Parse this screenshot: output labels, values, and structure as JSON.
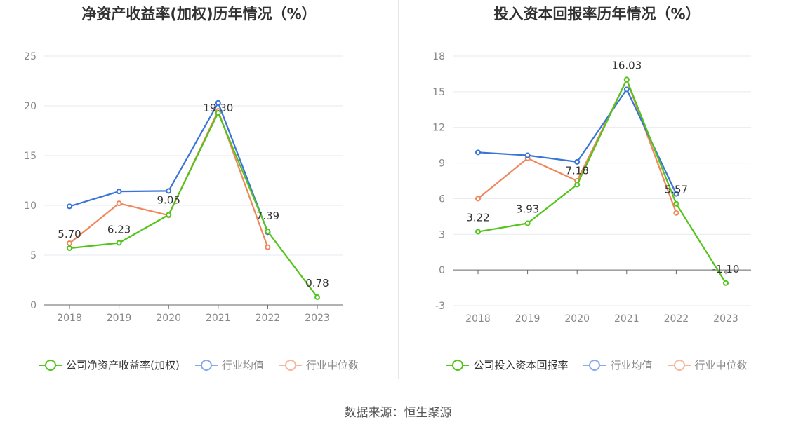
{
  "source": "数据来源：恒生聚源",
  "colors": {
    "company": "#52c41a",
    "avg": "#3a74d8",
    "median": "#f0875a",
    "grid": "#e6e9f0",
    "axis_text": "#888888",
    "label_text": "#333333"
  },
  "chart_data": [
    {
      "type": "line",
      "title": "净资产收益率(加权)历年情况（%）",
      "categories": [
        "2018",
        "2019",
        "2020",
        "2021",
        "2022",
        "2023"
      ],
      "yticks": [
        "0",
        "5",
        "10",
        "15",
        "20",
        "25"
      ],
      "ylim": [
        0,
        25
      ],
      "grid": true,
      "legend_position": "bottom",
      "series": [
        {
          "name": "公司净资产收益率(加权)",
          "color": "#52c41a",
          "values": [
            5.7,
            6.23,
            9.05,
            19.3,
            7.39,
            0.78
          ],
          "labels": [
            "5.70",
            "6.23",
            "9.05",
            "19.30",
            "7.39",
            "0.78"
          ]
        },
        {
          "name": "行业均值",
          "color": "#3a74d8",
          "values": [
            9.9,
            11.4,
            11.45,
            20.3,
            7.3,
            null
          ]
        },
        {
          "name": "行业中位数",
          "color": "#f0875a",
          "values": [
            6.2,
            10.2,
            9.0,
            19.5,
            5.8,
            null
          ]
        }
      ]
    },
    {
      "type": "line",
      "title": "投入资本回报率历年情况（%）",
      "categories": [
        "2018",
        "2019",
        "2020",
        "2021",
        "2022",
        "2023"
      ],
      "yticks": [
        "-3",
        "0",
        "3",
        "6",
        "9",
        "12",
        "15",
        "18"
      ],
      "ylim": [
        -3,
        18
      ],
      "grid": true,
      "legend_position": "bottom",
      "series": [
        {
          "name": "公司投入资本回报率",
          "color": "#52c41a",
          "values": [
            3.22,
            3.93,
            7.18,
            16.03,
            5.57,
            -1.1
          ],
          "labels": [
            "3.22",
            "3.93",
            "7.18",
            "16.03",
            "5.57",
            "-1.10"
          ]
        },
        {
          "name": "行业均值",
          "color": "#3a74d8",
          "values": [
            9.9,
            9.65,
            9.1,
            15.2,
            6.4,
            null
          ]
        },
        {
          "name": "行业中位数",
          "color": "#f0875a",
          "values": [
            6.0,
            9.4,
            7.5,
            16.0,
            4.8,
            null
          ]
        }
      ]
    }
  ]
}
